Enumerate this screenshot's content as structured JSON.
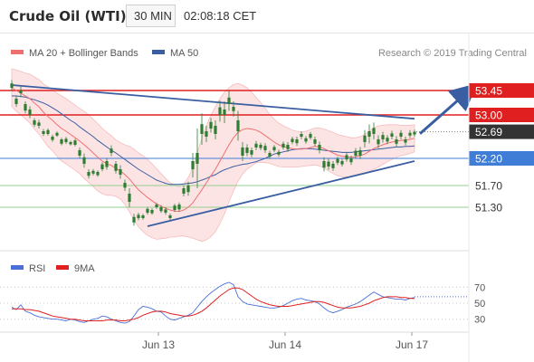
{
  "header": {
    "instrument": "Crude Oil (WTI)",
    "timeframe": "30 MIN",
    "time": "02:08:18 CET"
  },
  "watermark": "Research © 2019 Trading Central",
  "colors": {
    "candle": "#2e7d32",
    "ma20": "#ef6f6f",
    "bollinger_fill": "#fde4e4",
    "ma50": "#3a5ea2",
    "trendline": "#3a5ea2",
    "resistance": "#e02020",
    "pivot": "#3f7dd6",
    "support": "#8fcf8f",
    "rsi": "#4a6fd6",
    "ma9": "#e02020",
    "price_badge": "#333333",
    "arrow": "#3a5ea2"
  },
  "chart_data": [
    {
      "type": "candlestick",
      "title": "",
      "legend": [
        {
          "name": "MA 20 + Bollinger Bands",
          "color": "#ef6f6f"
        },
        {
          "name": "MA 50",
          "color": "#3a5ea2"
        }
      ],
      "x_tick_labels": [
        "Jun 13",
        "Jun 14",
        "Jun 17"
      ],
      "ylim": [
        50.9,
        53.95
      ],
      "levels": [
        {
          "kind": "resistance",
          "value": 53.45,
          "label": "53.45"
        },
        {
          "kind": "resistance",
          "value": 53.0,
          "label": "53.00"
        },
        {
          "kind": "last",
          "value": 52.69,
          "label": "52.69"
        },
        {
          "kind": "pivot",
          "value": 52.2,
          "label": "52.20"
        },
        {
          "kind": "support",
          "value": 51.7,
          "label": "51.70"
        },
        {
          "kind": "support",
          "value": 51.3,
          "label": "51.30"
        }
      ],
      "close": [
        53.5,
        53.3,
        53.4,
        53.2,
        53.0,
        52.9,
        52.8,
        52.7,
        52.65,
        52.6,
        52.62,
        52.55,
        52.5,
        52.5,
        52.45,
        52.35,
        52.1,
        51.95,
        51.92,
        51.95,
        52.0,
        52.15,
        52.3,
        52.1,
        51.9,
        51.75,
        51.4,
        51.12,
        51.1,
        51.15,
        51.2,
        51.25,
        51.3,
        51.3,
        51.2,
        51.15,
        51.25,
        51.35,
        51.55,
        51.7,
        52.0,
        52.3,
        52.65,
        52.7,
        52.75,
        52.8,
        53.0,
        53.1,
        53.2,
        53.15,
        52.7,
        52.4,
        52.3,
        52.35,
        52.4,
        52.45,
        52.35,
        52.3,
        52.35,
        52.32,
        52.4,
        52.45,
        52.5,
        52.55,
        52.6,
        52.57,
        52.58,
        52.55,
        52.35,
        52.15,
        52.05,
        52.1,
        52.12,
        52.15,
        52.18,
        52.2,
        52.25,
        52.35,
        52.5,
        52.7,
        52.65,
        52.55,
        52.55,
        52.58,
        52.6,
        52.55,
        52.6,
        52.55,
        52.62,
        52.69
      ],
      "open_offset": [
        0.08,
        -0.1,
        0.05,
        -0.12,
        0.1,
        -0.08,
        0.06,
        -0.05,
        0.07,
        -0.06,
        0.05,
        -0.08,
        0.06,
        -0.04,
        0.08,
        -0.1,
        0.12,
        -0.07,
        0.05,
        -0.06,
        0.09,
        -0.11,
        0.08,
        -0.13,
        0.1,
        -0.09,
        0.15,
        -0.1,
        0.06,
        -0.05,
        0.07,
        -0.06,
        0.05,
        -0.07,
        0.06,
        -0.05,
        0.08,
        -0.09,
        0.1,
        -0.12,
        0.15,
        -0.2,
        0.18,
        -0.1,
        0.12,
        -0.15,
        0.14,
        -0.1,
        0.12,
        -0.08,
        0.2,
        -0.15,
        0.1,
        -0.08,
        0.07,
        -0.06,
        0.08,
        -0.07,
        0.06,
        -0.05,
        0.07,
        -0.08,
        0.06,
        -0.07,
        0.05,
        -0.06,
        0.07,
        -0.08,
        0.1,
        -0.12,
        0.09,
        -0.08,
        0.07,
        -0.06,
        0.08,
        -0.07,
        0.09,
        -0.1,
        0.12,
        -0.1,
        0.11,
        -0.09,
        0.08,
        -0.07,
        0.06,
        -0.08,
        0.07,
        -0.06,
        0.05,
        -0.05
      ],
      "wick": [
        0.12,
        0.1,
        0.14,
        0.1,
        0.12,
        0.08,
        0.1,
        0.08,
        0.06,
        0.07,
        0.05,
        0.06,
        0.07,
        0.05,
        0.06,
        0.1,
        0.14,
        0.1,
        0.07,
        0.06,
        0.08,
        0.1,
        0.12,
        0.1,
        0.15,
        0.12,
        0.2,
        0.12,
        0.08,
        0.06,
        0.07,
        0.06,
        0.06,
        0.07,
        0.08,
        0.07,
        0.07,
        0.08,
        0.1,
        0.14,
        0.3,
        0.9,
        0.4,
        0.2,
        0.15,
        0.2,
        0.25,
        0.3,
        0.25,
        0.2,
        0.35,
        0.2,
        0.12,
        0.1,
        0.1,
        0.08,
        0.1,
        0.08,
        0.07,
        0.08,
        0.08,
        0.1,
        0.08,
        0.1,
        0.09,
        0.08,
        0.07,
        0.1,
        0.12,
        0.14,
        0.12,
        0.1,
        0.08,
        0.08,
        0.08,
        0.1,
        0.1,
        0.12,
        0.2,
        0.25,
        0.2,
        0.15,
        0.12,
        0.1,
        0.1,
        0.12,
        0.1,
        0.1,
        0.1,
        0.08
      ],
      "ma20": [
        53.5,
        53.45,
        53.4,
        53.35,
        53.3,
        53.22,
        53.15,
        53.05,
        52.97,
        52.9,
        52.82,
        52.75,
        52.7,
        52.64,
        52.58,
        52.52,
        52.45,
        52.38,
        52.3,
        52.22,
        52.15,
        52.1,
        52.07,
        52.02,
        51.97,
        51.9,
        51.82,
        51.72,
        51.62,
        51.55,
        51.48,
        51.42,
        51.36,
        51.32,
        51.28,
        51.25,
        51.23,
        51.22,
        51.25,
        51.3,
        51.38,
        51.5,
        51.62,
        51.75,
        51.88,
        52.0,
        52.15,
        52.3,
        52.45,
        52.58,
        52.68,
        52.73,
        52.75,
        52.74,
        52.72,
        52.68,
        52.62,
        52.56,
        52.5,
        52.45,
        52.42,
        52.4,
        52.38,
        52.37,
        52.37,
        52.38,
        52.4,
        52.42,
        52.41,
        52.38,
        52.34,
        52.3,
        52.26,
        52.24,
        52.23,
        52.22,
        52.23,
        52.25,
        52.28,
        52.33,
        52.38,
        52.42,
        52.45,
        52.48,
        52.5,
        52.52,
        52.53,
        52.54,
        52.55,
        52.57
      ],
      "ma50": [
        53.35,
        53.35,
        53.34,
        53.33,
        53.3,
        53.28,
        53.25,
        53.22,
        53.18,
        53.13,
        53.08,
        53.02,
        52.96,
        52.9,
        52.85,
        52.78,
        52.72,
        52.66,
        52.6,
        52.53,
        52.47,
        52.41,
        52.35,
        52.3,
        52.24,
        52.18,
        52.12,
        52.06,
        52.0,
        51.95,
        51.9,
        51.85,
        51.8,
        51.77,
        51.74,
        51.72,
        51.72,
        51.72,
        51.73,
        51.74,
        51.75,
        51.77,
        51.8,
        51.83,
        51.87,
        51.9,
        51.95,
        51.99,
        52.02,
        52.05,
        52.07,
        52.09,
        52.1,
        52.12,
        52.14,
        52.17,
        52.2,
        52.24,
        52.28,
        52.3,
        52.32,
        52.34,
        52.36,
        52.37,
        52.38,
        52.38,
        52.38,
        52.37,
        52.36,
        52.35,
        52.34,
        52.33,
        52.32,
        52.31,
        52.31,
        52.31,
        52.32,
        52.33,
        52.34,
        52.35,
        52.36,
        52.37,
        52.38,
        52.39,
        52.4,
        52.41,
        52.41,
        52.42,
        52.42,
        52.43
      ],
      "bb_width": [
        0.35,
        0.38,
        0.4,
        0.42,
        0.45,
        0.48,
        0.5,
        0.52,
        0.55,
        0.56,
        0.58,
        0.6,
        0.6,
        0.6,
        0.6,
        0.6,
        0.62,
        0.62,
        0.62,
        0.62,
        0.6,
        0.58,
        0.55,
        0.52,
        0.52,
        0.55,
        0.6,
        0.65,
        0.68,
        0.7,
        0.7,
        0.68,
        0.65,
        0.6,
        0.55,
        0.5,
        0.48,
        0.45,
        0.48,
        0.55,
        0.65,
        0.8,
        0.95,
        1.05,
        1.12,
        1.15,
        1.15,
        1.12,
        1.05,
        0.98,
        0.9,
        0.82,
        0.75,
        0.68,
        0.6,
        0.55,
        0.5,
        0.45,
        0.42,
        0.4,
        0.38,
        0.36,
        0.34,
        0.33,
        0.32,
        0.32,
        0.33,
        0.34,
        0.35,
        0.36,
        0.37,
        0.38,
        0.38,
        0.38,
        0.37,
        0.36,
        0.35,
        0.35,
        0.36,
        0.37,
        0.38,
        0.38,
        0.36,
        0.34,
        0.32,
        0.3,
        0.28,
        0.27,
        0.26,
        0.25
      ],
      "trendlines": [
        {
          "from": [
            0,
            53.55
          ],
          "to": [
            89,
            52.93
          ]
        },
        {
          "from": [
            30,
            50.95
          ],
          "to": [
            89,
            52.15
          ]
        }
      ],
      "projection": {
        "from": [
          89,
          52.72
        ],
        "to": [
          99,
          53.45
        ]
      }
    },
    {
      "type": "line",
      "title": "",
      "legend": [
        {
          "name": "RSI",
          "color": "#4a6fd6"
        },
        {
          "name": "9MA",
          "color": "#e02020"
        }
      ],
      "ylim": [
        15,
        85
      ],
      "y_tick_labels": [
        "70",
        "50",
        "30"
      ],
      "y_ticks": [
        70,
        50,
        30
      ],
      "dotted_last": 58,
      "rsi": [
        45,
        42,
        48,
        40,
        38,
        35,
        33,
        32,
        31,
        30,
        30,
        29,
        28,
        30,
        29,
        27,
        26,
        28,
        30,
        31,
        34,
        33,
        30,
        28,
        26,
        25,
        27,
        34,
        42,
        46,
        45,
        43,
        40,
        39,
        34,
        30,
        29,
        31,
        33,
        35,
        38,
        45,
        52,
        58,
        63,
        67,
        71,
        74,
        76,
        73,
        58,
        52,
        49,
        48,
        47,
        46,
        45,
        44,
        44,
        45,
        47,
        50,
        53,
        55,
        56,
        54,
        53,
        52,
        49,
        44,
        40,
        38,
        40,
        42,
        45,
        47,
        49,
        52,
        56,
        60,
        64,
        61,
        58,
        57,
        56,
        55,
        55,
        54,
        56,
        57
      ],
      "ma9": [
        43,
        43,
        43,
        42,
        42,
        41,
        40,
        38,
        36,
        34,
        33,
        32,
        31,
        30,
        30,
        29,
        28,
        28,
        28,
        28,
        28,
        29,
        29,
        29,
        28,
        28,
        29,
        30,
        32,
        35,
        37,
        39,
        40,
        40,
        39,
        37,
        36,
        35,
        34,
        34,
        35,
        37,
        40,
        44,
        49,
        54,
        59,
        63,
        67,
        69,
        69,
        67,
        63,
        59,
        55,
        52,
        50,
        48,
        47,
        46,
        46,
        46,
        47,
        48,
        49,
        50,
        51,
        52,
        52,
        51,
        49,
        47,
        45,
        44,
        44,
        44,
        45,
        46,
        48,
        50,
        53,
        55,
        57,
        58,
        58,
        58,
        57,
        57,
        56,
        56
      ]
    }
  ]
}
